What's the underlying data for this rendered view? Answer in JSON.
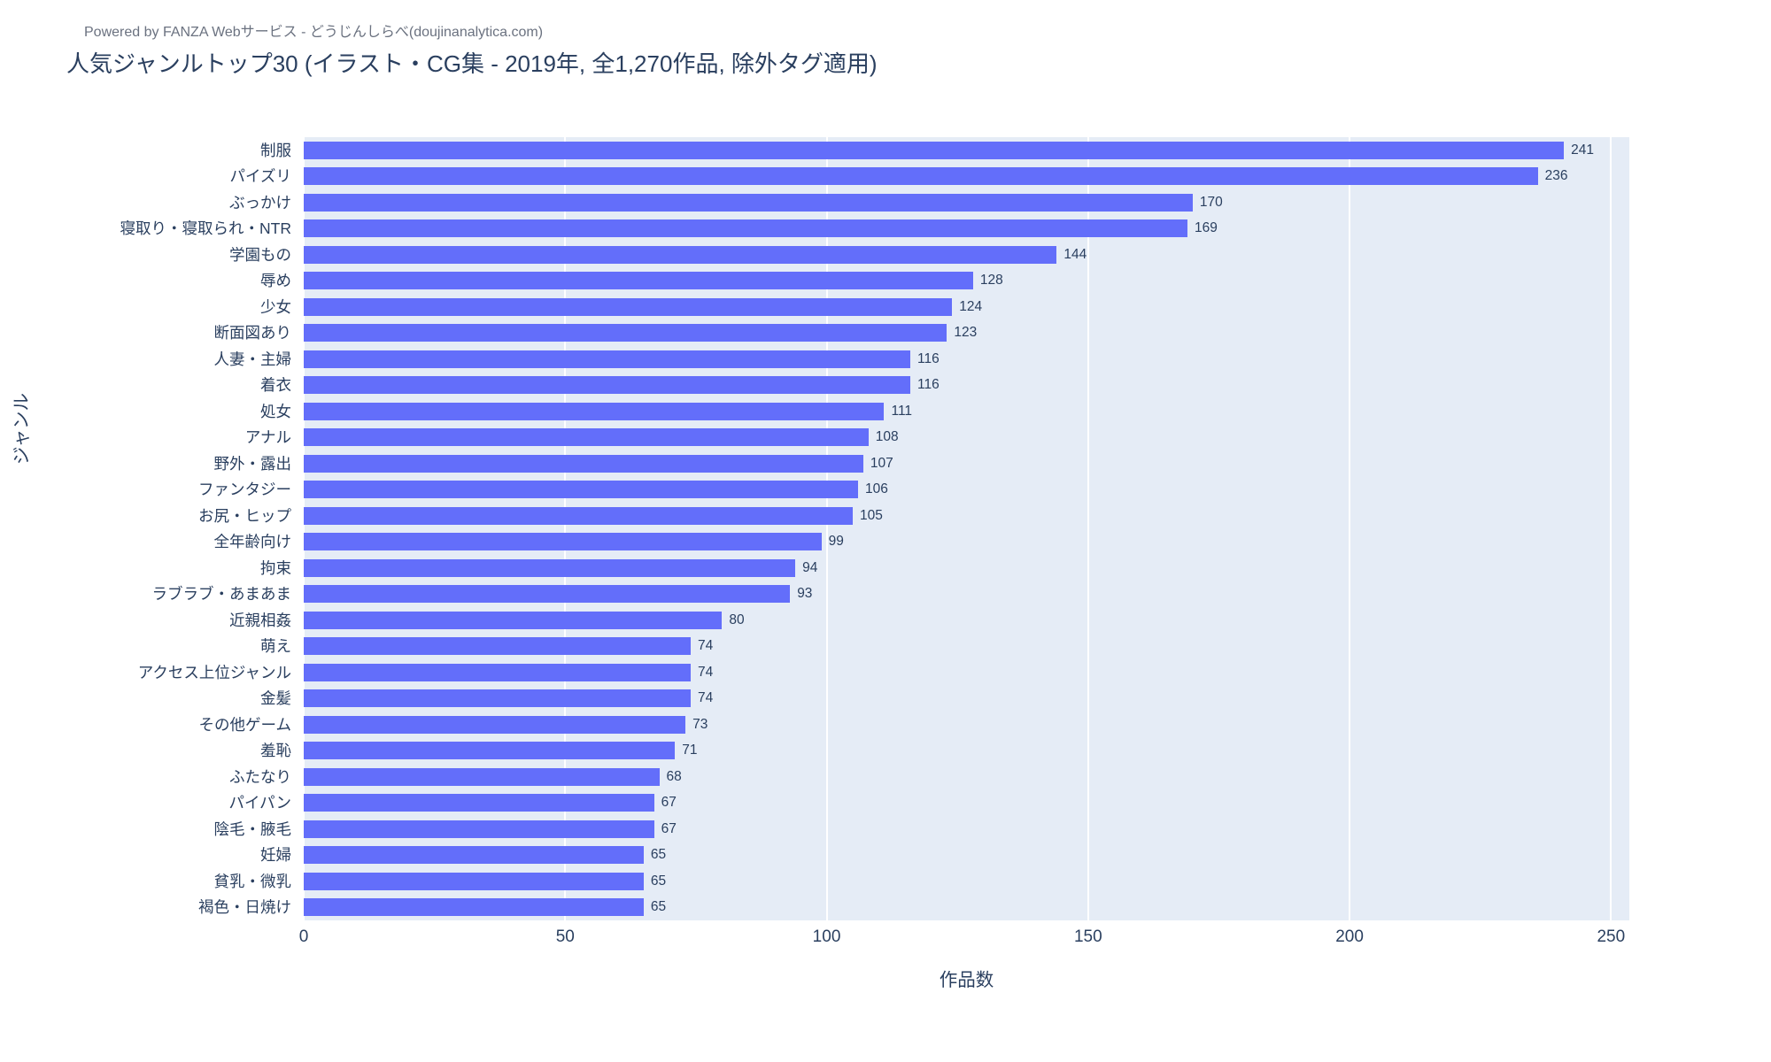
{
  "header": {
    "powered_by": "Powered by FANZA Webサービス - どうじんしらべ(doujinanalytica.com)"
  },
  "title": "人気ジャンルトップ30 (イラスト・CG集 - 2019年, 全1,270作品, 除外タグ適用)",
  "chart_data": {
    "type": "bar",
    "orientation": "horizontal",
    "title": "人気ジャンルトップ30 (イラスト・CG集 - 2019年, 全1,270作品, 除外タグ適用)",
    "xlabel": "作品数",
    "ylabel": "ジャンル",
    "categories": [
      "制服",
      "パイズリ",
      "ぶっかけ",
      "寝取り・寝取られ・NTR",
      "学園もの",
      "辱め",
      "少女",
      "断面図あり",
      "人妻・主婦",
      "着衣",
      "処女",
      "アナル",
      "野外・露出",
      "ファンタジー",
      "お尻・ヒップ",
      "全年齢向け",
      "拘束",
      "ラブラブ・あまあま",
      "近親相姦",
      "萌え",
      "アクセス上位ジャンル",
      "金髪",
      "その他ゲーム",
      "羞恥",
      "ふたなり",
      "パイパン",
      "陰毛・腋毛",
      "妊婦",
      "貧乳・微乳",
      "褐色・日焼け"
    ],
    "values": [
      241,
      236,
      170,
      169,
      144,
      128,
      124,
      123,
      116,
      116,
      111,
      108,
      107,
      106,
      105,
      99,
      94,
      93,
      80,
      74,
      74,
      74,
      73,
      71,
      68,
      67,
      67,
      65,
      65,
      65
    ],
    "value_labels_shown": true,
    "xticks": [
      0,
      50,
      100,
      150,
      200,
      250
    ],
    "xlim": [
      0,
      253.5
    ],
    "grid": true,
    "legend": false,
    "colors": {
      "bar": "#636EFA",
      "plot_background": "#E5ECF6",
      "gridline": "#ffffff",
      "text": "#2a3f5f",
      "powered_by_text": "#6b7280"
    }
  }
}
